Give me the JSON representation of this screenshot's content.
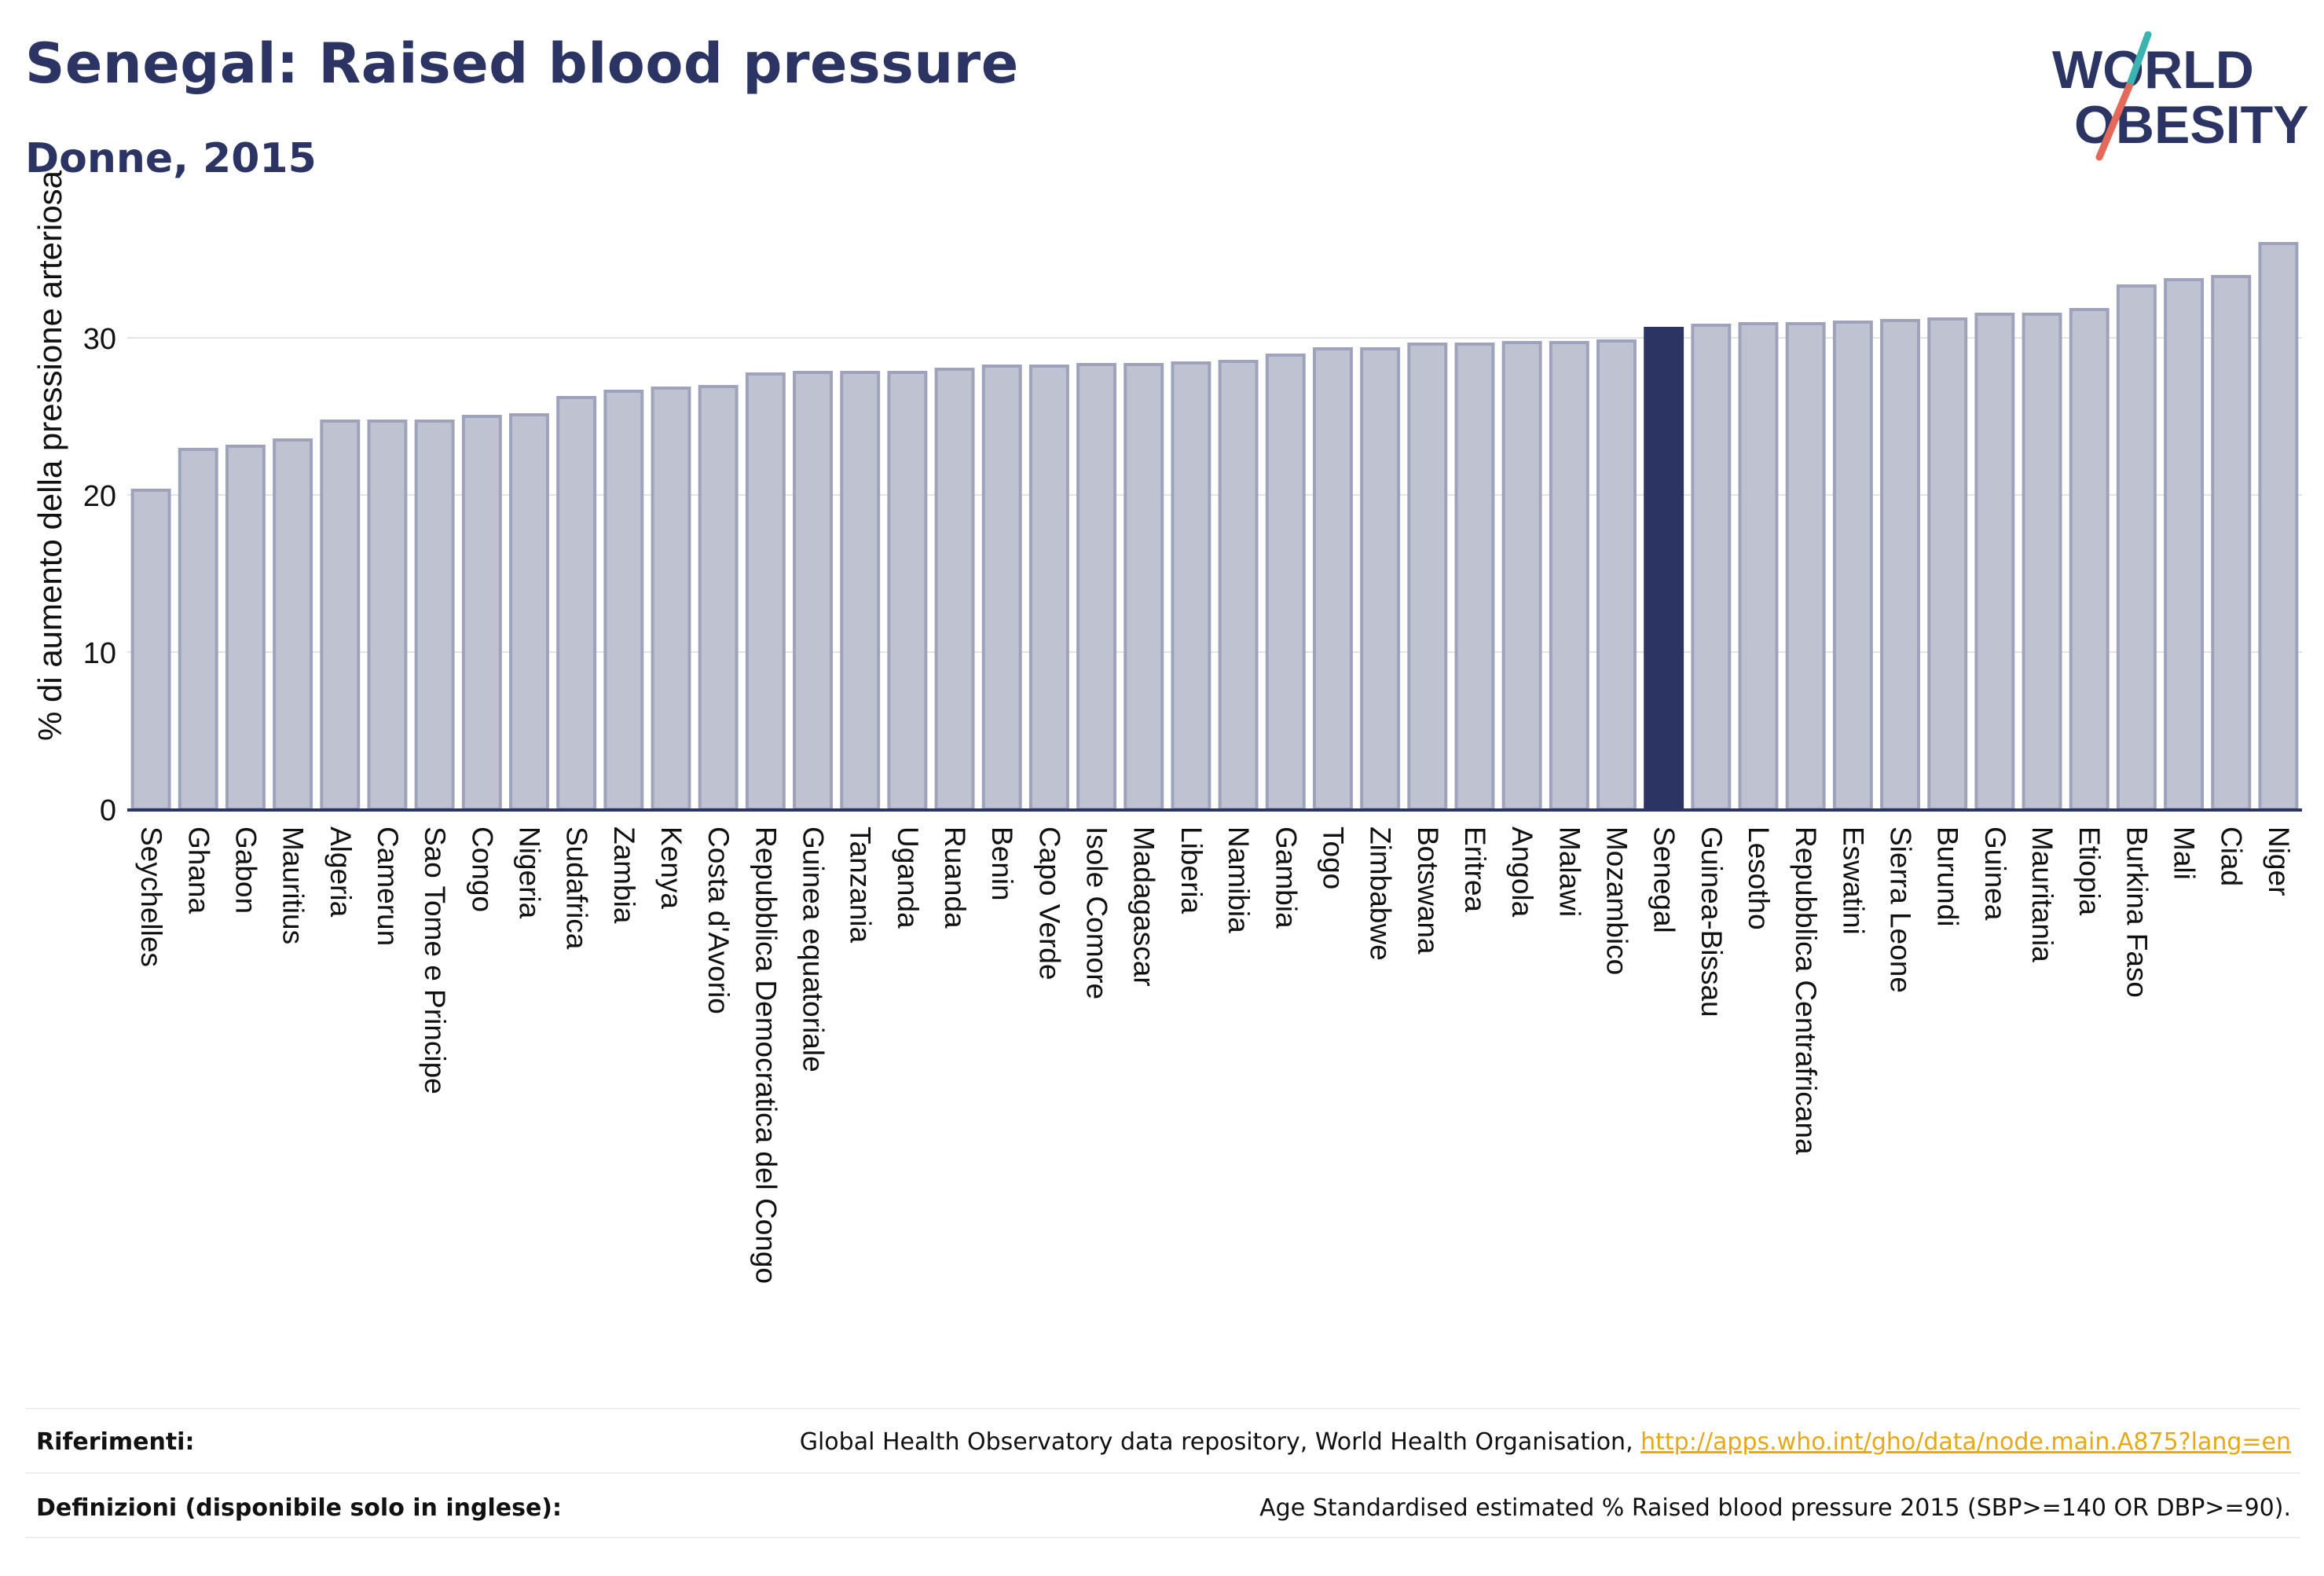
{
  "header": {
    "title": "Senegal: Raised blood pressure",
    "subtitle": "Donne, 2015"
  },
  "logo": {
    "line1": "WORLD",
    "line2": "OBESITY"
  },
  "colors": {
    "bar": "#bfc3d1",
    "bar_border": "#9ea3bb",
    "highlight": "#2b3462",
    "text": "#2b3462",
    "link": "#e6a817"
  },
  "footer": {
    "references_label": "Riferimenti:",
    "references_text": "Global Health Observatory data repository, World Health Organisation, ",
    "references_link": "http://apps.who.int/gho/data/node.main.A875?lang=en",
    "definitions_label": "Definizioni (disponibile solo in inglese):",
    "definitions_text": "Age Standardised estimated % Raised blood pressure 2015 (SBP>=140 OR DBP>=90)."
  },
  "chart_data": {
    "type": "bar",
    "title": "Senegal: Raised blood pressure",
    "subtitle": "Donne, 2015",
    "xlabel": "",
    "ylabel": "% di aumento della pressione arteriosa",
    "ylim": [
      0,
      37
    ],
    "yticks": [
      0,
      10,
      20,
      30
    ],
    "grid": true,
    "highlight": "Senegal",
    "categories": [
      "Seychelles",
      "Ghana",
      "Gabon",
      "Mauritius",
      "Algeria",
      "Camerun",
      "Sao Tome e Principe",
      "Congo",
      "Nigeria",
      "Sudafrica",
      "Zambia",
      "Kenya",
      "Costa d'Avorio",
      "Repubblica Democratica del Congo",
      "Guinea equatoriale",
      "Tanzania",
      "Uganda",
      "Ruanda",
      "Benin",
      "Capo Verde",
      "Isole Comore",
      "Madagascar",
      "Liberia",
      "Namibia",
      "Gambia",
      "Togo",
      "Zimbabwe",
      "Botswana",
      "Eritrea",
      "Angola",
      "Malawi",
      "Mozambico",
      "Senegal",
      "Guinea-Bissau",
      "Lesotho",
      "Repubblica Centrafricana",
      "Eswatini",
      "Sierra Leone",
      "Burundi",
      "Guinea",
      "Mauritania",
      "Etiopia",
      "Burkina Faso",
      "Mali",
      "Ciad",
      "Niger"
    ],
    "values": [
      20.3,
      22.9,
      23.1,
      23.5,
      24.7,
      24.7,
      24.7,
      25.0,
      25.1,
      26.2,
      26.6,
      26.8,
      26.9,
      27.7,
      27.8,
      27.8,
      27.8,
      28.0,
      28.2,
      28.2,
      28.3,
      28.3,
      28.4,
      28.5,
      28.9,
      29.3,
      29.3,
      29.6,
      29.6,
      29.7,
      29.7,
      29.8,
      30.6,
      30.8,
      30.9,
      30.9,
      31.0,
      31.1,
      31.2,
      31.5,
      31.5,
      31.8,
      33.3,
      33.7,
      33.9,
      36.0
    ]
  }
}
